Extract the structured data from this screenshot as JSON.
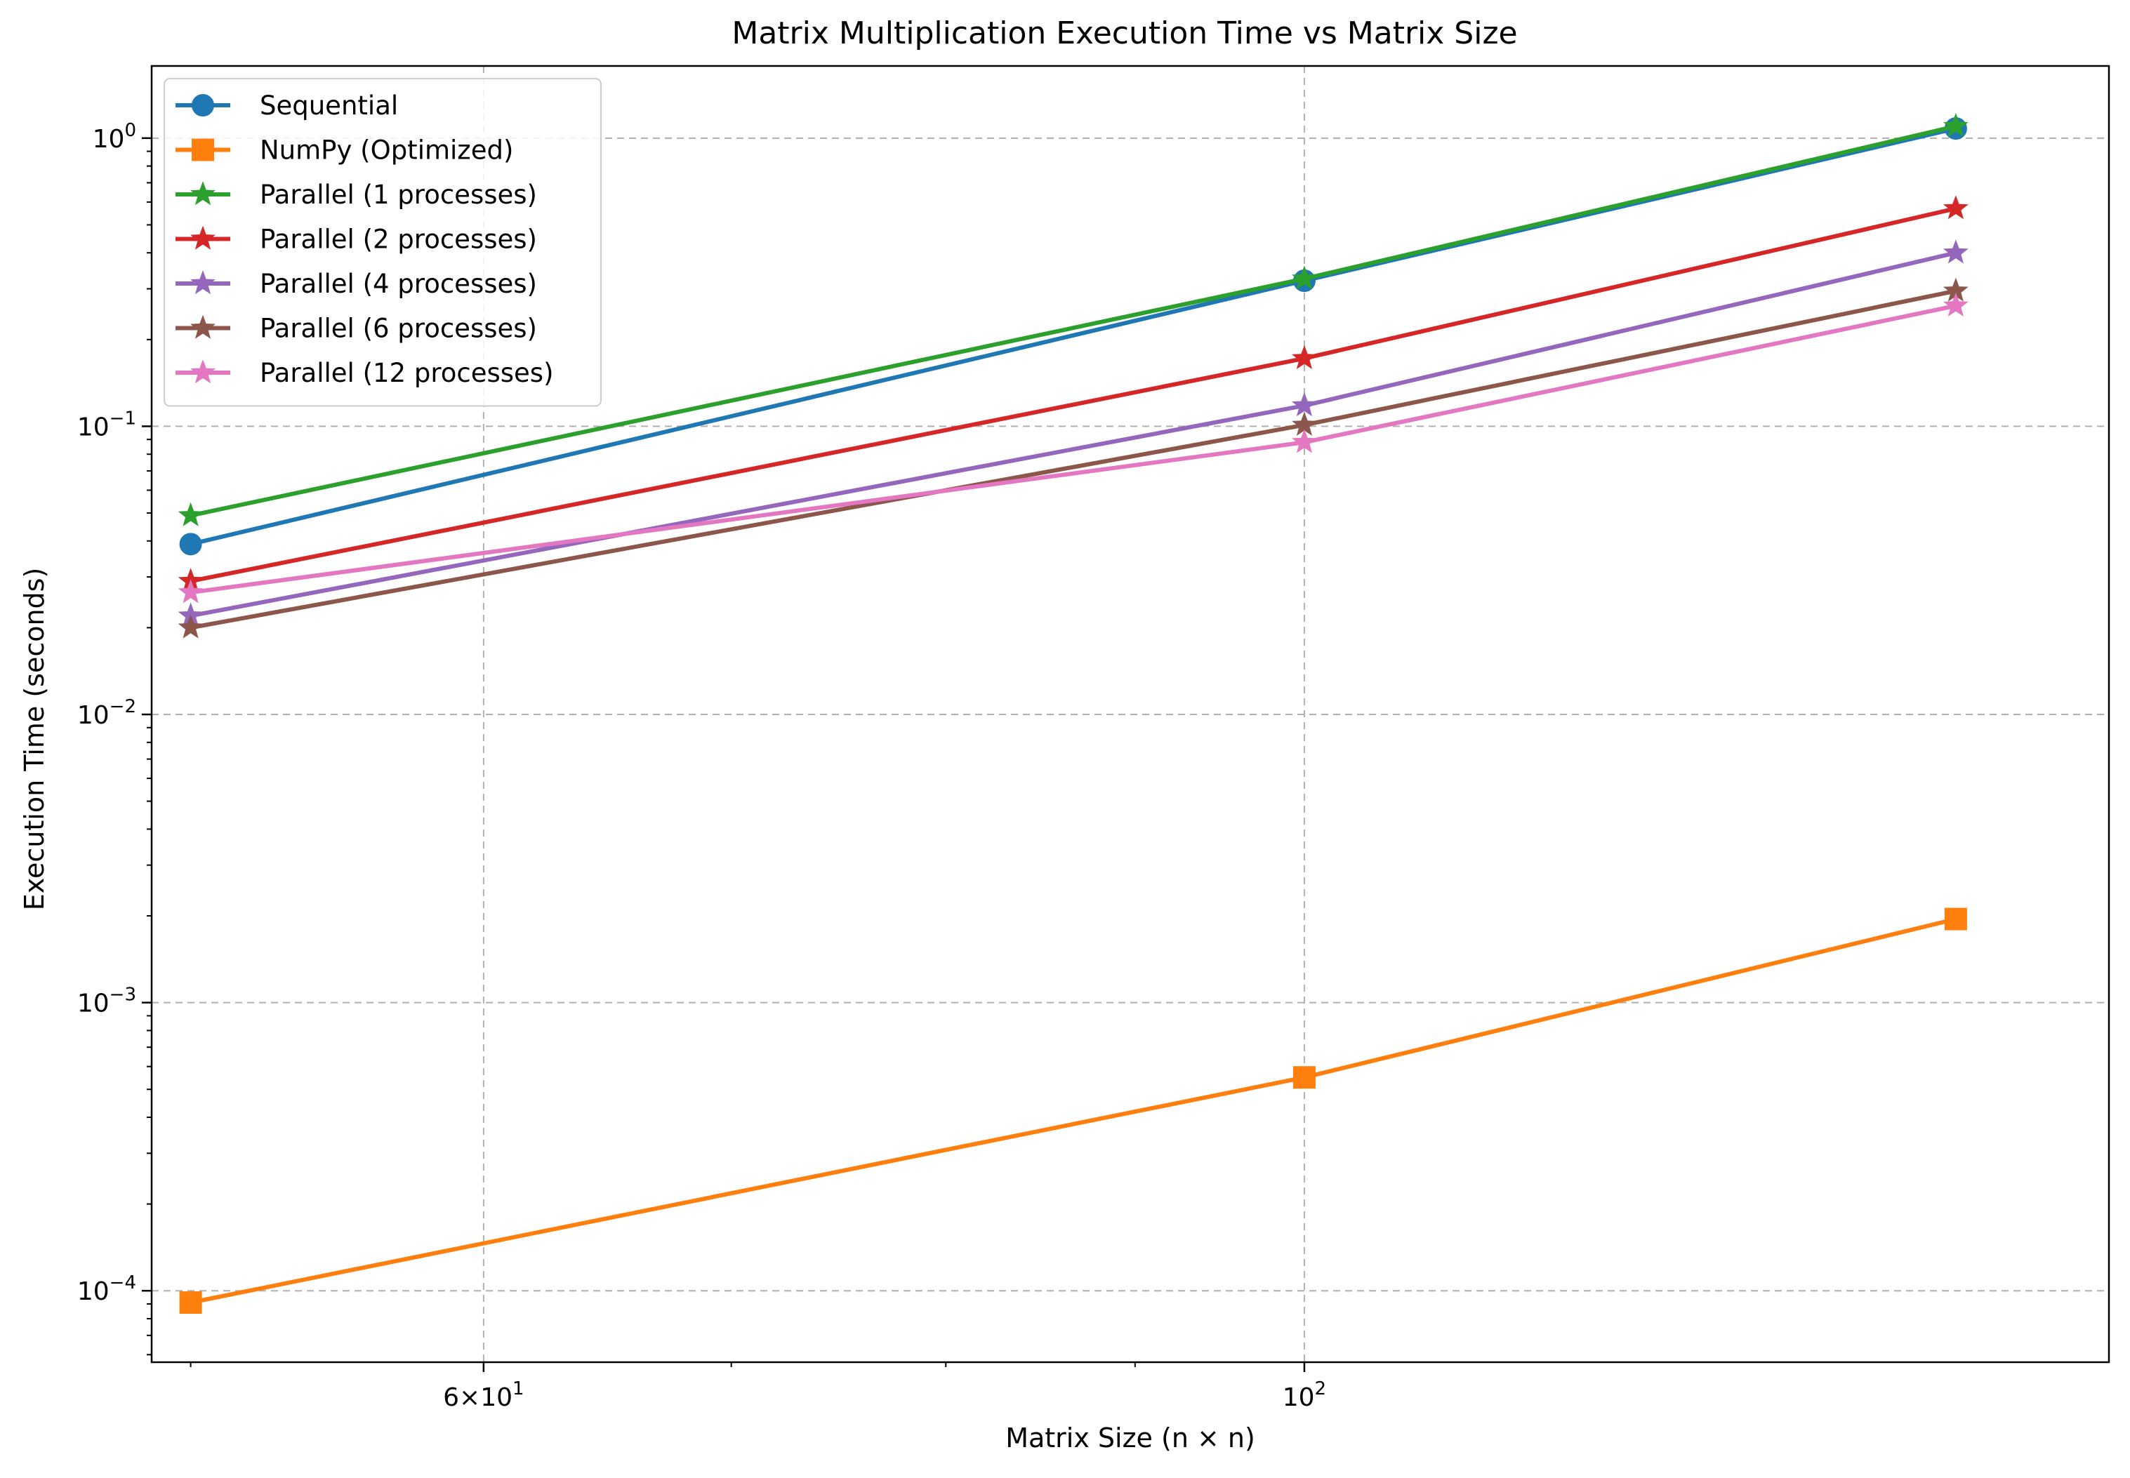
{
  "chart_data": {
    "type": "line",
    "title": "Matrix Multiplication Execution Time vs Matrix Size",
    "xlabel": "Matrix Size (n × n)",
    "ylabel": "Execution Time (seconds)",
    "xscale": "log",
    "yscale": "log",
    "xlim": [
      48.8,
      165
    ],
    "ylim": [
      5.65e-05,
      1.78
    ],
    "x": [
      50,
      100,
      150
    ],
    "x_major_ticks": [
      {
        "value": 60,
        "base": "6",
        "exp": "1",
        "times": true
      },
      {
        "value": 100,
        "base": "10",
        "exp": "2",
        "times": false
      }
    ],
    "x_minor_ticks": [
      50,
      70,
      80,
      90
    ],
    "y_major_ticks": [
      {
        "value": 0.0001,
        "base": "10",
        "exp": "−4"
      },
      {
        "value": 0.001,
        "base": "10",
        "exp": "−3"
      },
      {
        "value": 0.01,
        "base": "10",
        "exp": "−2"
      },
      {
        "value": 0.1,
        "base": "10",
        "exp": "−1"
      },
      {
        "value": 1,
        "base": "10",
        "exp": "0"
      }
    ],
    "grid": true,
    "legend_position": "upper-left",
    "series": [
      {
        "name": "Sequential",
        "values": [
          0.039,
          0.32,
          1.08
        ],
        "color": "#1f77b4",
        "marker": "circle"
      },
      {
        "name": "NumPy (Optimized)",
        "values": [
          9.1e-05,
          0.00055,
          0.00195
        ],
        "color": "#ff7f0e",
        "marker": "square"
      },
      {
        "name": "Parallel (1 processes)",
        "values": [
          0.049,
          0.325,
          1.1
        ],
        "color": "#2ca02c",
        "marker": "star"
      },
      {
        "name": "Parallel (2 processes)",
        "values": [
          0.029,
          0.172,
          0.57
        ],
        "color": "#d62728",
        "marker": "star"
      },
      {
        "name": "Parallel (4 processes)",
        "values": [
          0.022,
          0.118,
          0.4
        ],
        "color": "#9467bd",
        "marker": "star"
      },
      {
        "name": "Parallel (6 processes)",
        "values": [
          0.02,
          0.101,
          0.295
        ],
        "color": "#8c564b",
        "marker": "star"
      },
      {
        "name": "Parallel (12 processes)",
        "values": [
          0.0265,
          0.088,
          0.262
        ],
        "color": "#e377c2",
        "marker": "star"
      }
    ]
  }
}
